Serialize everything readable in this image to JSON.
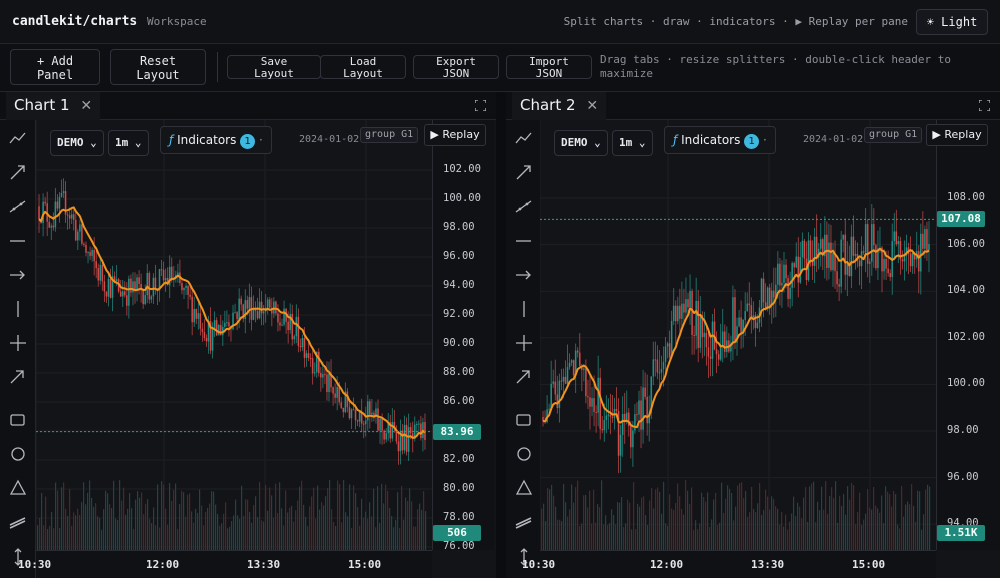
{
  "app": {
    "brand": "candlekit/charts",
    "workspace": "Workspace"
  },
  "top_hint": "Split charts · draw · indicators · ▶ Replay per pane",
  "theme_toggle": {
    "label": "Light",
    "icon": "sun-icon"
  },
  "toolbar": {
    "add_panel": [
      "+ Add",
      "Panel"
    ],
    "reset_layout": [
      "Reset",
      "Layout"
    ],
    "save_layout": [
      "Save",
      "Layout"
    ],
    "load_layout": [
      "Load",
      "Layout"
    ],
    "export_json": [
      "Export",
      "JSON"
    ],
    "import_json": [
      "Import",
      "JSON"
    ],
    "hint": "Drag tabs · resize splitters · double-click header to maximize"
  },
  "tools": [
    "trend-line-icon",
    "ray-icon",
    "extended-line-icon",
    "horizontal-line-icon",
    "horizontal-ray-icon",
    "vertical-line-icon",
    "crosshair-icon",
    "arrow-icon",
    "rectangle-icon",
    "circle-icon",
    "triangle-icon",
    "brush-icon",
    "measure-icon"
  ],
  "panels": [
    {
      "title": "Chart 1",
      "symbol": "DEMO",
      "interval": "1m",
      "indicators_label": "Indicators",
      "indicators_count": "1",
      "date": "2024-01-02",
      "group": "group G1",
      "replay": "Replay",
      "y_ticks": [
        "102.00",
        "100.00",
        "98.00",
        "96.00",
        "94.00",
        "92.00",
        "90.00",
        "88.00",
        "86.00",
        "84.00",
        "82.00",
        "80.00",
        "78.00",
        "76.00"
      ],
      "x_ticks": [
        "10:30",
        "12:00",
        "13:30",
        "15:00"
      ],
      "last_price": "83.96",
      "last_volume": "506"
    },
    {
      "title": "Chart 2",
      "symbol": "DEMO",
      "interval": "1m",
      "indicators_label": "Indicators",
      "indicators_count": "1",
      "date": "2024-01-02",
      "group": "group G1",
      "replay": "Replay",
      "y_ticks": [
        "108.00",
        "106.00",
        "104.00",
        "102.00",
        "100.00",
        "98.00",
        "96.00",
        "94.00"
      ],
      "x_ticks": [
        "10:30",
        "12:00",
        "13:30",
        "15:00"
      ],
      "last_price": "107.08",
      "last_volume": "1.51K"
    }
  ],
  "chart_data": [
    {
      "type": "line",
      "title": "",
      "x_range": [
        "10:30",
        "15:40"
      ],
      "y_range": [
        75,
        103
      ],
      "series": [
        {
          "values": [
            99.5,
            98.6,
            99.8,
            97.4,
            95.6,
            94.3,
            93.8,
            93.6,
            93.9,
            94.2,
            94.6,
            93.2,
            92.0,
            90.4,
            91.6,
            92.5,
            92.7,
            92.4,
            91.6,
            91.2,
            90.0,
            88.3,
            86.6,
            85.7,
            85.6,
            84.8,
            84.0,
            83.7,
            83.3,
            83.96
          ]
        }
      ],
      "ma_color": "#f0941f",
      "up_color": "#26a69a",
      "down_color": "#ef5350"
    },
    {
      "type": "line",
      "title": "",
      "x_range": [
        "10:30",
        "15:40"
      ],
      "y_range": [
        93.5,
        109
      ],
      "series": [
        {
          "values": [
            98.6,
            99.6,
            100.8,
            100.4,
            99.4,
            98.3,
            97.9,
            98.5,
            99.6,
            101.4,
            102.5,
            103.1,
            102.4,
            102.0,
            102.5,
            103.1,
            103.5,
            104.0,
            104.4,
            104.9,
            105.3,
            105.8,
            105.1,
            105.6,
            106.3,
            106.0,
            105.4,
            105.6,
            105.2,
            107.08
          ]
        }
      ],
      "ma_color": "#f0941f",
      "up_color": "#26a69a",
      "down_color": "#ef5350"
    }
  ]
}
